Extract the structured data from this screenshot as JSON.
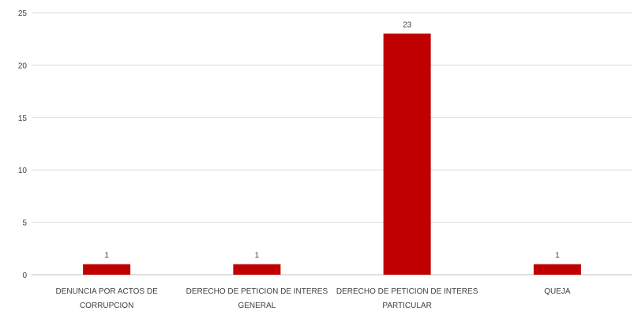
{
  "chart_data": {
    "type": "bar",
    "categories": [
      [
        "DENUNCIA POR ACTOS DE",
        "CORRUPCION"
      ],
      [
        "DERECHO DE PETICION DE INTERES",
        "GENERAL"
      ],
      [
        "DERECHO DE PETICION DE INTERES",
        "PARTICULAR"
      ],
      [
        "QUEJA"
      ]
    ],
    "values": [
      1,
      1,
      23,
      1
    ],
    "data_labels": [
      "1",
      "1",
      "23",
      "1"
    ],
    "ylim": [
      0,
      25
    ],
    "yticks": [
      0,
      5,
      10,
      15,
      20,
      25
    ],
    "grid": true,
    "legend": "none",
    "bar_color": "#c00000",
    "grid_color": "#d9d9d9",
    "axis_color": "#bfbfbf"
  }
}
